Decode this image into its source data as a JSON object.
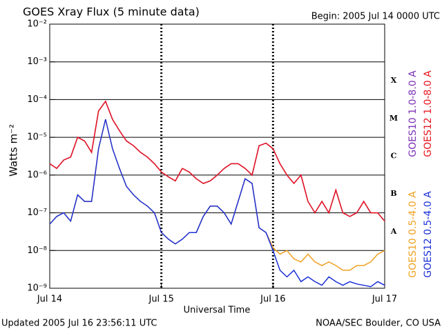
{
  "chart_data": {
    "type": "line",
    "title": "GOES Xray Flux (5 minute data)",
    "subtitle": "Begin:  2005 Jul 14 0000 UTC",
    "ylabel": "Watts m⁻²",
    "xlabel": "Universal Time",
    "footer_left": "Updated 2005 Jul 16 23:56:11 UTC",
    "footer_right": "NOAA/SEC Boulder, CO USA",
    "flare_classes": [
      "X",
      "M",
      "C",
      "B",
      "A"
    ],
    "log_y": true,
    "grid": true,
    "xlim": [
      0,
      72
    ],
    "xticks": [
      {
        "value": 0,
        "label": "Jul 14"
      },
      {
        "value": 24,
        "label": "Jul 15"
      },
      {
        "value": 48,
        "label": "Jul 16"
      },
      {
        "value": 72,
        "label": "Jul 17"
      }
    ],
    "ylim": [
      1e-09,
      0.01
    ],
    "yticks": [
      {
        "value": 1e-09,
        "label": "10⁻⁹"
      },
      {
        "value": 1e-08,
        "label": "10⁻⁸"
      },
      {
        "value": 1e-07,
        "label": "10⁻⁷"
      },
      {
        "value": 1e-06,
        "label": "10⁻⁶"
      },
      {
        "value": 1e-05,
        "label": "10⁻⁵"
      },
      {
        "value": 0.0001,
        "label": "10⁻⁴"
      },
      {
        "value": 0.001,
        "label": "10⁻³"
      },
      {
        "value": 0.01,
        "label": "10⁻²"
      }
    ],
    "x": [
      0,
      1.5,
      3,
      4.5,
      6,
      7.5,
      9,
      10.5,
      12,
      13.5,
      15,
      16.5,
      18,
      19.5,
      21,
      22.5,
      24,
      25.5,
      27,
      28.5,
      30,
      31.5,
      33,
      34.5,
      36,
      37.5,
      39,
      40.5,
      42,
      43.5,
      45,
      46.5,
      48,
      49.5,
      51,
      52.5,
      54,
      55.5,
      57,
      58.5,
      60,
      61.5,
      63,
      64.5,
      66,
      67.5,
      69,
      70.5,
      72
    ],
    "series": [
      {
        "name": "GOES10 1.0-8.0 A",
        "color": "#7a2fb5",
        "values": [
          2e-06,
          1.5e-06,
          2.5e-06,
          3e-06,
          1e-05,
          8e-06,
          4e-06,
          5e-05,
          9e-05,
          3e-05,
          1.5e-05,
          8e-06,
          6e-06,
          4e-06,
          3e-06,
          2e-06,
          1.2e-06,
          9e-07,
          7e-07,
          1.5e-06,
          1.2e-06,
          8e-07,
          6e-07,
          7e-07,
          1e-06,
          1.5e-06,
          2e-06,
          2e-06,
          1.5e-06,
          1e-06,
          6e-06,
          7e-06,
          5e-06,
          2e-06,
          1e-06,
          6e-07,
          1e-06,
          2e-07,
          1e-07,
          2e-07,
          1e-07,
          4e-07,
          1e-07,
          8e-08,
          1e-07,
          2e-07,
          1e-07,
          1e-07,
          6e-08
        ]
      },
      {
        "name": "GOES12 1.0-8.0 A",
        "color": "#e8141c",
        "values": [
          2e-06,
          1.5e-06,
          2.5e-06,
          3e-06,
          1e-05,
          8e-06,
          4e-06,
          5e-05,
          9e-05,
          3e-05,
          1.5e-05,
          8e-06,
          6e-06,
          4e-06,
          3e-06,
          2e-06,
          1.2e-06,
          9e-07,
          7e-07,
          1.5e-06,
          1.2e-06,
          8e-07,
          6e-07,
          7e-07,
          1e-06,
          1.5e-06,
          2e-06,
          2e-06,
          1.5e-06,
          1e-06,
          6e-06,
          7e-06,
          5e-06,
          2e-06,
          1e-06,
          6e-07,
          1e-06,
          2e-07,
          1e-07,
          2e-07,
          1e-07,
          4e-07,
          1e-07,
          8e-08,
          1e-07,
          2e-07,
          1e-07,
          1e-07,
          6e-08
        ]
      },
      {
        "name": "GOES10 0.5-4.0 A",
        "color": "#f0a020",
        "values": [
          5e-08,
          8e-08,
          1e-07,
          6e-08,
          3e-07,
          2e-07,
          2e-07,
          5e-06,
          3e-05,
          5e-06,
          1.5e-06,
          5e-07,
          3e-07,
          2e-07,
          1.5e-07,
          1e-07,
          3e-08,
          2e-08,
          1.5e-08,
          2e-08,
          3e-08,
          3e-08,
          8e-08,
          1.5e-07,
          1.5e-07,
          1e-07,
          5e-08,
          2e-07,
          8e-07,
          6e-07,
          4e-08,
          3e-08,
          1.2e-08,
          8e-09,
          1e-08,
          6e-09,
          5e-09,
          8e-09,
          5e-09,
          4e-09,
          5e-09,
          4e-09,
          3e-09,
          3e-09,
          4e-09,
          4e-09,
          5e-09,
          8e-09,
          1e-08
        ]
      },
      {
        "name": "GOES12 0.5-4.0 A",
        "color": "#1a2fd8",
        "values": [
          5e-08,
          8e-08,
          1e-07,
          6e-08,
          3e-07,
          2e-07,
          2e-07,
          5e-06,
          3e-05,
          5e-06,
          1.5e-06,
          5e-07,
          3e-07,
          2e-07,
          1.5e-07,
          1e-07,
          3e-08,
          2e-08,
          1.5e-08,
          2e-08,
          3e-08,
          3e-08,
          8e-08,
          1.5e-07,
          1.5e-07,
          1e-07,
          5e-08,
          2e-07,
          8e-07,
          6e-07,
          4e-08,
          3e-08,
          1e-08,
          3e-09,
          2e-09,
          3e-09,
          1.5e-09,
          2e-09,
          1.5e-09,
          1.2e-09,
          2e-09,
          1.5e-09,
          1.2e-09,
          1.5e-09,
          1.3e-09,
          1.2e-09,
          1.1e-09,
          1.5e-09,
          1.2e-09
        ]
      }
    ]
  }
}
